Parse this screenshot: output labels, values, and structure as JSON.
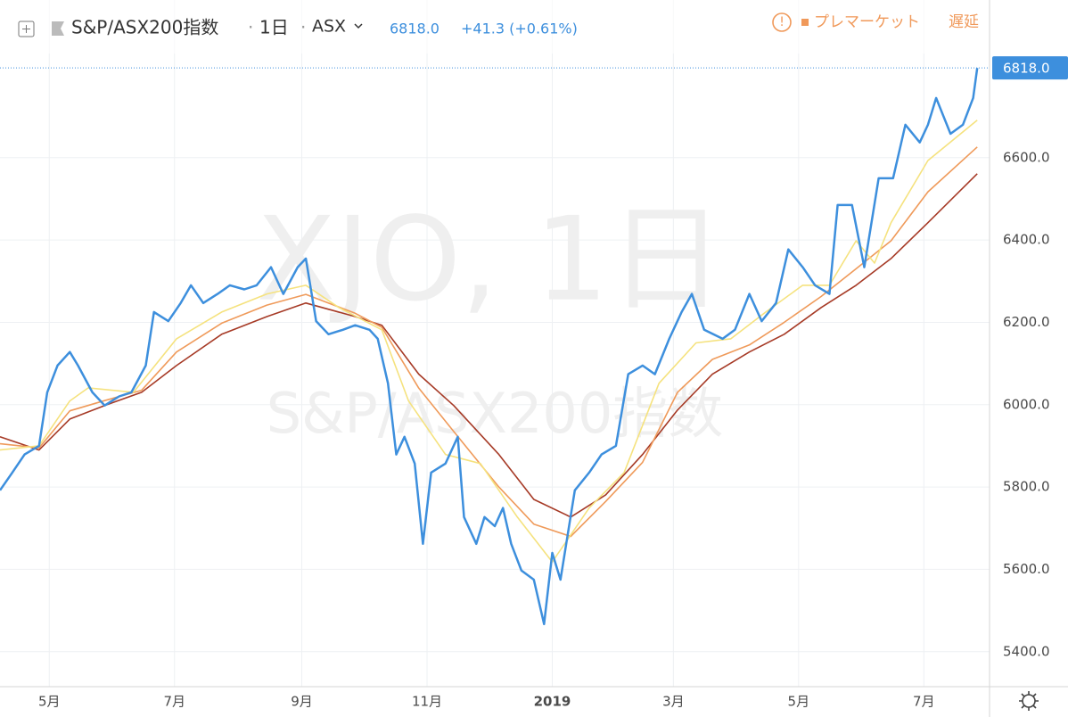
{
  "chart_data": {
    "type": "line",
    "title": "S&P/ASX200指数",
    "interval": "1日",
    "exchange": "ASX",
    "watermark": "XJO, 1日",
    "last_price": {
      "value": 6818.0,
      "label": "6818.0"
    },
    "change_label": "+41.3 (+0.61%)",
    "status": "プレマーケット",
    "delay": "遅延",
    "xlim": [
      0,
      482
    ],
    "ylim": [
      5315,
      6853
    ],
    "xticks": [
      {
        "value": 24,
        "label": "5月"
      },
      {
        "value": 85,
        "label": "7月"
      },
      {
        "value": 147,
        "label": "9月"
      },
      {
        "value": 208,
        "label": "11月"
      },
      {
        "value": 269,
        "label": "2019"
      },
      {
        "value": 328,
        "label": "3月"
      },
      {
        "value": 389,
        "label": "5月"
      },
      {
        "value": 450,
        "label": "7月"
      }
    ],
    "yticks": [
      {
        "value": 5400,
        "label": "5400.0"
      },
      {
        "value": 5600,
        "label": "5600.0"
      },
      {
        "value": 5800,
        "label": "5800.0"
      },
      {
        "value": 6000,
        "label": "6000.0"
      },
      {
        "value": 6200,
        "label": "6200.0"
      },
      {
        "value": 6400,
        "label": "6400.0"
      },
      {
        "value": 6600,
        "label": "6600.0"
      }
    ],
    "grid": true,
    "series": [
      {
        "color": "#a63a26",
        "x": [
          0,
          19,
          34,
          51,
          69,
          86,
          108,
          130,
          149,
          173,
          186,
          204,
          221,
          243,
          260,
          278,
          295,
          313,
          330,
          347,
          365,
          382,
          400,
          417,
          434,
          452,
          476
        ],
        "values": [
          5922,
          5890,
          5965,
          5998,
          6030,
          6095,
          6171,
          6214,
          6247,
          6214,
          6193,
          6074,
          5998,
          5879,
          5770,
          5727,
          5781,
          5879,
          5987,
          6074,
          6128,
          6171,
          6236,
          6290,
          6355,
          6442,
          6561
        ]
      },
      {
        "color": "#ef9a5a",
        "x": [
          0,
          19,
          34,
          51,
          69,
          86,
          108,
          130,
          149,
          173,
          186,
          204,
          221,
          243,
          260,
          278,
          295,
          313,
          330,
          347,
          365,
          382,
          400,
          417,
          434,
          452,
          476
        ],
        "values": [
          5905,
          5895,
          5985,
          6010,
          6035,
          6128,
          6198,
          6242,
          6268,
          6222,
          6188,
          6040,
          5935,
          5800,
          5710,
          5680,
          5765,
          5860,
          6030,
          6110,
          6145,
          6200,
          6263,
          6330,
          6398,
          6517,
          6626
        ]
      },
      {
        "color": "#f5e27e",
        "x": [
          0,
          19,
          34,
          43,
          65,
          86,
          108,
          130,
          149,
          165,
          186,
          199,
          217,
          234,
          252,
          269,
          287,
          304,
          321,
          339,
          356,
          373,
          391,
          404,
          417,
          426,
          434,
          452,
          476
        ],
        "values": [
          5890,
          5900,
          6009,
          6041,
          6030,
          6160,
          6225,
          6269,
          6290,
          6236,
          6182,
          6009,
          5879,
          5857,
          5727,
          5618,
          5749,
          5835,
          6052,
          6150,
          6160,
          6225,
          6290,
          6290,
          6398,
          6344,
          6442,
          6593,
          6691
        ]
      },
      {
        "color": "#3d8fdd",
        "x": [
          0,
          6,
          12,
          19,
          23,
          28,
          34,
          38,
          45,
          51,
          58,
          64,
          71,
          75,
          82,
          88,
          93,
          99,
          106,
          112,
          119,
          125,
          132,
          138,
          145,
          149,
          154,
          160,
          167,
          173,
          180,
          184,
          189,
          193,
          197,
          202,
          206,
          210,
          217,
          223,
          226,
          232,
          236,
          241,
          245,
          249,
          254,
          260,
          265,
          269,
          273,
          280,
          287,
          293,
          300,
          306,
          313,
          319,
          326,
          332,
          337,
          343,
          352,
          358,
          365,
          371,
          378,
          384,
          391,
          397,
          404,
          408,
          415,
          421,
          428,
          435,
          441,
          448,
          452,
          456,
          463,
          469,
          474,
          476
        ],
        "values": [
          5792,
          5835,
          5879,
          5900,
          6030,
          6095,
          6128,
          6095,
          6030,
          5998,
          6020,
          6030,
          6095,
          6225,
          6203,
          6247,
          6290,
          6247,
          6269,
          6290,
          6280,
          6290,
          6334,
          6269,
          6334,
          6355,
          6203,
          6171,
          6182,
          6193,
          6182,
          6160,
          6052,
          5879,
          5922,
          5857,
          5662,
          5835,
          5857,
          5922,
          5727,
          5662,
          5727,
          5705,
          5749,
          5662,
          5597,
          5575,
          5467,
          5640,
          5575,
          5792,
          5835,
          5879,
          5900,
          6074,
          6095,
          6074,
          6160,
          6225,
          6269,
          6182,
          6160,
          6182,
          6269,
          6203,
          6247,
          6377,
          6334,
          6290,
          6269,
          6485,
          6485,
          6334,
          6550,
          6550,
          6680,
          6637,
          6680,
          6745,
          6658,
          6680,
          6745,
          6818
        ]
      }
    ]
  }
}
